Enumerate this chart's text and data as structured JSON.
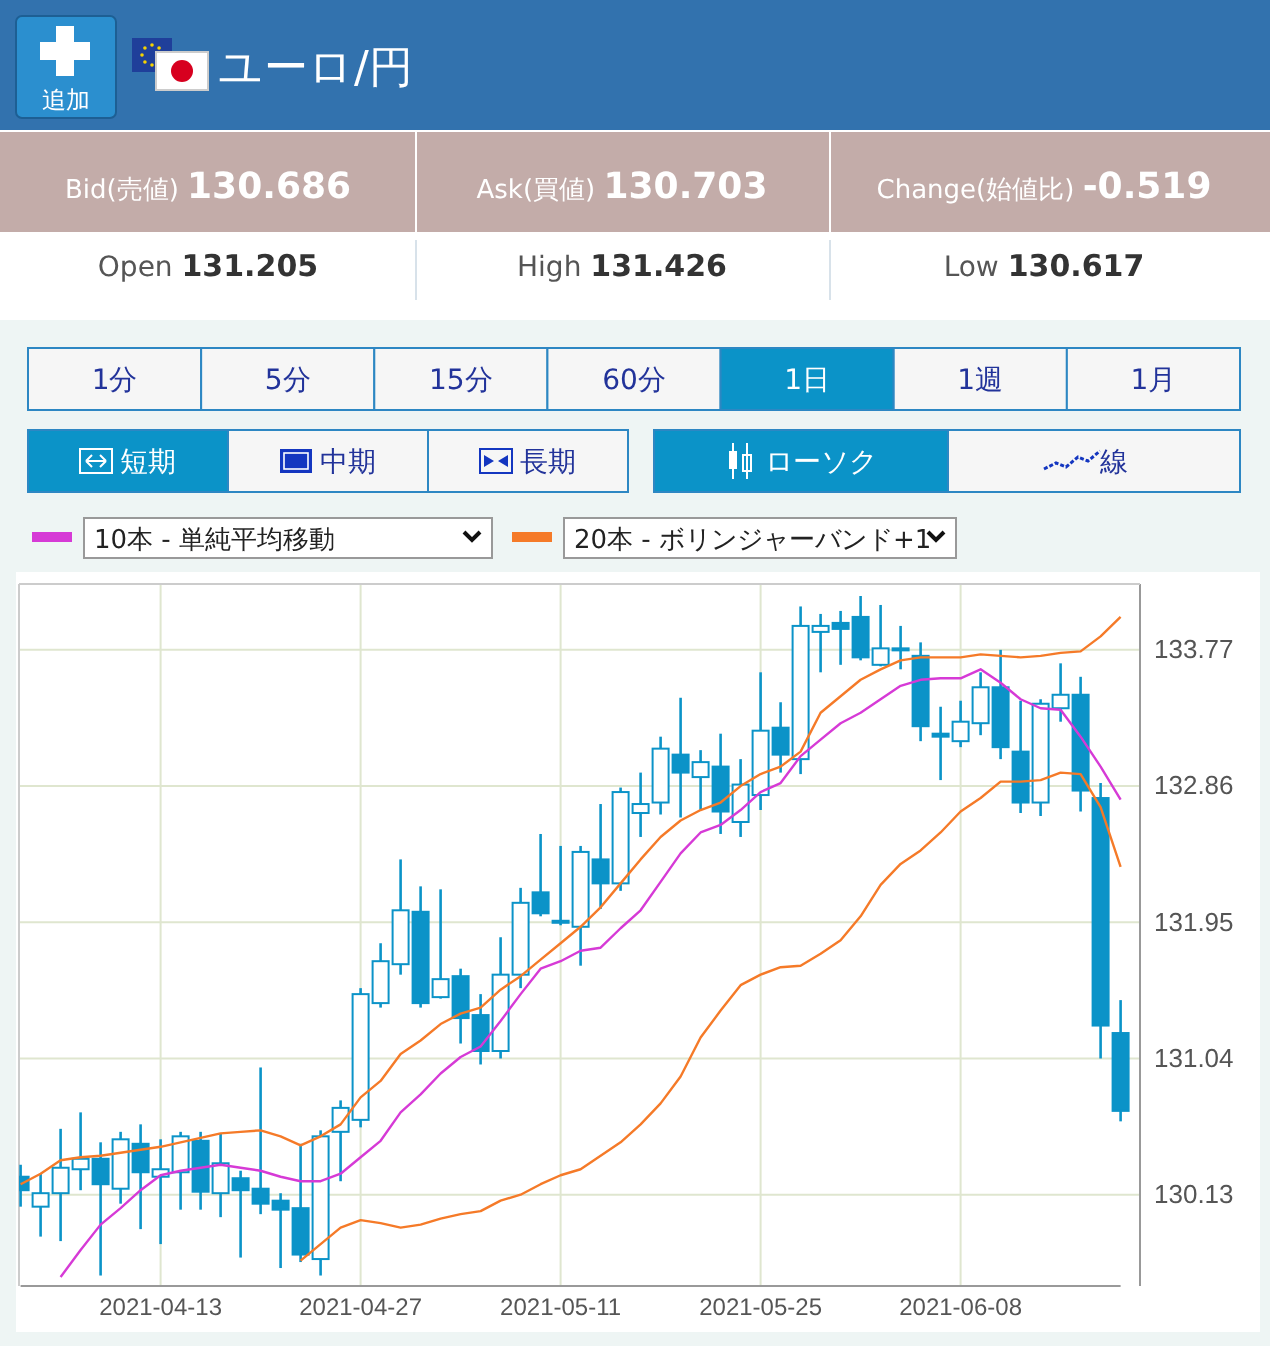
{
  "chart_data": {
    "type": "candlestick",
    "title": "ユーロ/円",
    "annotations": [
      "追加",
      "Bid(売値) 130.686",
      "Ask(買値) 130.703",
      "Change(始値比) -0.519",
      "Open 131.205",
      "High 131.426",
      "Low 130.617",
      "1分",
      "5分",
      "15分",
      "60分",
      "1日",
      "1週",
      "1月",
      "短期",
      "中期",
      "長期",
      "ローソク",
      "線"
    ],
    "categories": [
      null,
      null,
      null,
      null,
      null,
      null,
      null,
      "2021-04-13",
      null,
      null,
      null,
      null,
      null,
      null,
      null,
      null,
      null,
      "2021-04-27",
      null,
      null,
      null,
      null,
      null,
      null,
      null,
      null,
      null,
      "2021-05-11",
      null,
      null,
      null,
      null,
      null,
      null,
      null,
      null,
      null,
      "2021-05-25",
      null,
      null,
      null,
      null,
      null,
      null,
      null,
      null,
      null,
      "2021-06-08",
      null,
      null,
      null,
      null,
      null,
      null,
      null,
      null
    ],
    "ylim": [
      129.52,
      134.21
    ],
    "yticks": [
      130.13,
      131.04,
      131.95,
      132.86,
      133.77
    ],
    "grid": true,
    "legend": "top left",
    "series": [
      {
        "type": "candlestick",
        "color": "#0b93c8",
        "ohlc": [
          [
            130.25,
            130.33,
            130.05,
            130.16
          ],
          [
            130.05,
            130.27,
            129.85,
            130.14
          ],
          [
            130.14,
            130.57,
            129.82,
            130.31
          ],
          [
            130.3,
            130.68,
            130.16,
            130.37
          ],
          [
            130.37,
            130.48,
            129.59,
            130.2
          ],
          [
            130.17,
            130.55,
            130.07,
            130.5
          ],
          [
            130.47,
            130.6,
            129.9,
            130.28
          ],
          [
            130.25,
            130.5,
            129.8,
            130.3
          ],
          [
            130.28,
            130.55,
            130.03,
            130.52
          ],
          [
            130.49,
            130.55,
            130.03,
            130.15
          ],
          [
            130.14,
            130.54,
            129.98,
            130.34
          ],
          [
            130.24,
            130.29,
            129.71,
            130.16
          ],
          [
            130.17,
            130.98,
            130.0,
            130.07
          ],
          [
            130.09,
            130.14,
            129.64,
            130.03
          ],
          [
            130.04,
            130.47,
            129.68,
            129.73
          ],
          [
            129.7,
            130.56,
            129.59,
            130.52
          ],
          [
            130.55,
            130.76,
            130.22,
            130.71
          ],
          [
            130.63,
            131.51,
            130.58,
            131.47
          ],
          [
            131.41,
            131.81,
            131.38,
            131.69
          ],
          [
            131.67,
            132.37,
            131.6,
            132.03
          ],
          [
            132.02,
            132.19,
            131.38,
            131.41
          ],
          [
            131.45,
            132.17,
            131.44,
            131.57
          ],
          [
            131.59,
            131.64,
            131.14,
            131.31
          ],
          [
            131.33,
            131.47,
            131.0,
            131.09
          ],
          [
            131.09,
            131.85,
            131.04,
            131.6
          ],
          [
            131.6,
            132.18,
            131.51,
            132.08
          ],
          [
            132.15,
            132.54,
            131.99,
            132.01
          ],
          [
            131.95,
            132.46,
            131.93,
            131.96
          ],
          [
            131.92,
            132.46,
            131.66,
            132.42
          ],
          [
            132.37,
            132.74,
            132.04,
            132.21
          ],
          [
            132.21,
            132.85,
            132.16,
            132.82
          ],
          [
            132.68,
            132.95,
            132.52,
            132.74
          ],
          [
            132.75,
            133.19,
            132.67,
            133.11
          ],
          [
            133.07,
            133.45,
            132.65,
            132.95
          ],
          [
            132.92,
            133.1,
            132.7,
            133.02
          ],
          [
            132.99,
            133.21,
            132.54,
            132.69
          ],
          [
            132.62,
            133.04,
            132.52,
            132.87
          ],
          [
            132.8,
            133.62,
            132.7,
            133.23
          ],
          [
            133.25,
            133.42,
            132.95,
            133.07
          ],
          [
            133.04,
            134.06,
            132.94,
            133.93
          ],
          [
            133.89,
            134.01,
            133.62,
            133.93
          ],
          [
            133.95,
            134.03,
            133.67,
            133.91
          ],
          [
            133.99,
            134.13,
            133.7,
            133.72
          ],
          [
            133.67,
            134.07,
            133.66,
            133.78
          ],
          [
            133.77,
            133.93,
            133.64,
            133.78
          ],
          [
            133.73,
            133.82,
            133.16,
            133.26
          ],
          [
            133.21,
            133.39,
            132.9,
            133.19
          ],
          [
            133.16,
            133.43,
            133.12,
            133.29
          ],
          [
            133.28,
            133.62,
            133.2,
            133.52
          ],
          [
            133.52,
            133.77,
            133.04,
            133.12
          ],
          [
            133.09,
            133.43,
            132.68,
            132.75
          ],
          [
            132.75,
            133.44,
            132.66,
            133.41
          ],
          [
            133.38,
            133.68,
            133.29,
            133.47
          ],
          [
            133.47,
            133.59,
            132.69,
            132.83
          ],
          [
            132.78,
            132.88,
            131.04,
            131.26
          ],
          [
            131.21,
            131.43,
            130.62,
            130.69
          ]
        ]
      },
      {
        "type": "line",
        "name": "10本 - 単純平均移動",
        "color": "#d63ad6",
        "values": [
          null,
          null,
          129.58,
          129.76,
          129.93,
          130.04,
          130.16,
          130.26,
          130.29,
          130.31,
          130.33,
          130.31,
          130.29,
          130.25,
          130.22,
          130.22,
          130.27,
          130.38,
          130.49,
          130.68,
          130.8,
          130.94,
          131.05,
          131.12,
          131.29,
          131.47,
          131.64,
          131.69,
          131.76,
          131.78,
          131.91,
          132.03,
          132.22,
          132.41,
          132.55,
          132.6,
          132.7,
          132.82,
          132.88,
          133.06,
          133.17,
          133.28,
          133.35,
          133.44,
          133.53,
          133.57,
          133.58,
          133.58,
          133.64,
          133.55,
          133.44,
          133.38,
          133.37,
          133.19,
          132.99,
          132.77
        ]
      },
      {
        "type": "line",
        "name": "20本 - ボリンジャーバンド+1",
        "color": "#f57a28",
        "values": [
          130.2,
          130.27,
          130.36,
          130.38,
          130.39,
          130.41,
          130.43,
          130.45,
          130.48,
          130.51,
          130.54,
          130.55,
          130.56,
          130.52,
          130.46,
          130.52,
          130.6,
          130.78,
          130.89,
          131.07,
          131.16,
          131.27,
          131.34,
          131.38,
          131.5,
          131.59,
          131.7,
          131.81,
          131.92,
          132.05,
          132.21,
          132.37,
          132.52,
          132.63,
          132.7,
          132.75,
          132.86,
          132.94,
          132.99,
          133.09,
          133.35,
          133.46,
          133.57,
          133.64,
          133.7,
          133.72,
          133.72,
          133.72,
          133.74,
          133.73,
          133.72,
          133.73,
          133.75,
          133.76,
          133.86,
          133.99
        ]
      },
      {
        "type": "line",
        "color": "#f57a28",
        "values": [
          null,
          null,
          null,
          null,
          null,
          null,
          null,
          null,
          null,
          null,
          null,
          null,
          null,
          null,
          129.69,
          129.8,
          129.91,
          129.96,
          129.94,
          129.91,
          129.93,
          129.97,
          130.0,
          130.02,
          130.09,
          130.13,
          130.2,
          130.26,
          130.3,
          130.39,
          130.48,
          130.6,
          130.74,
          130.92,
          131.18,
          131.36,
          131.53,
          131.6,
          131.65,
          131.66,
          131.74,
          131.83,
          131.99,
          132.2,
          132.34,
          132.43,
          132.55,
          132.69,
          132.78,
          132.89,
          132.89,
          132.9,
          132.95,
          132.94,
          132.72,
          132.32
        ]
      }
    ]
  }
}
